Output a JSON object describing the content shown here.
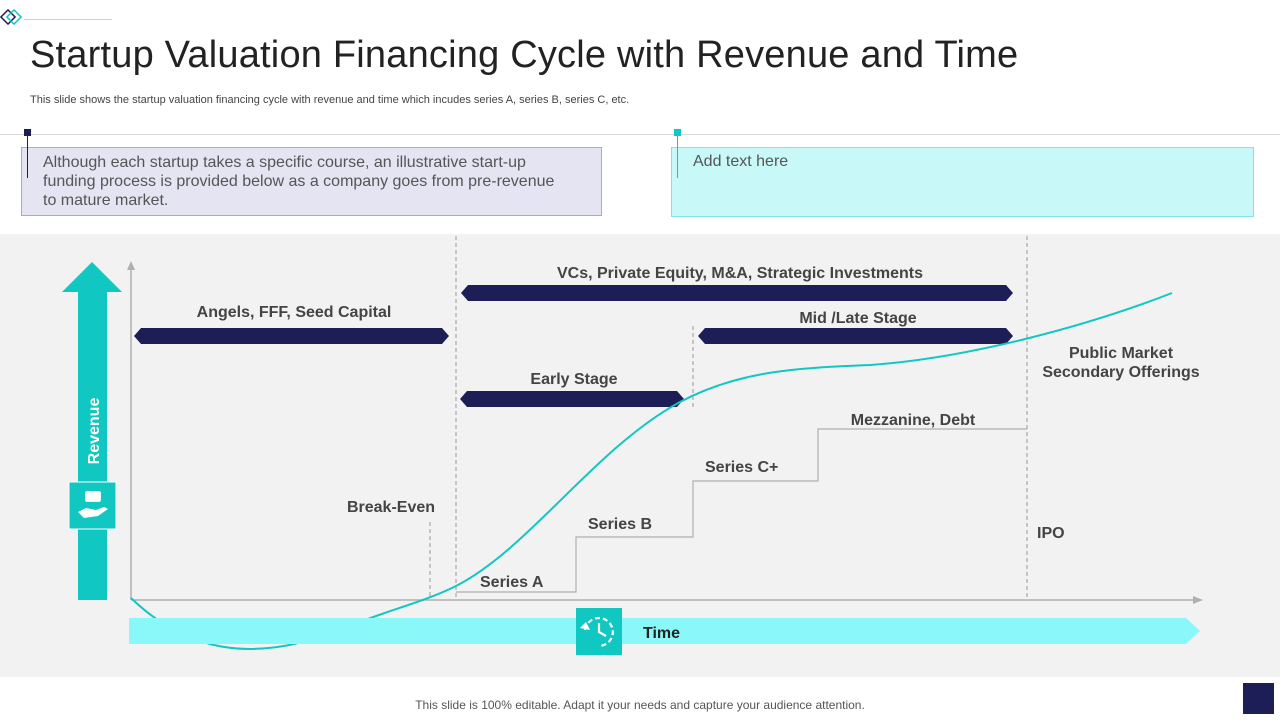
{
  "slide": {
    "title": "Startup Valuation Financing Cycle with Revenue and Time",
    "subtitle": "This slide shows the startup valuation financing cycle with revenue and time which incudes series A, series B, series C, etc.",
    "footer": "This slide is 100% editable. Adapt it your needs and capture your audience attention."
  },
  "boxes": {
    "left_text": "Although each startup takes a specific course, an illustrative start-up funding process is provided below as a company goes from pre-revenue to mature market.",
    "right_text": "Add text here"
  },
  "axes": {
    "y_label": "Revenue",
    "x_label": "Time"
  },
  "stage_labels": {
    "angels": "Angels, FFF, Seed Capital",
    "vcs": "VCs, Private Equity, M&A, Strategic Investments",
    "mid_late": "Mid /Late Stage",
    "early": "Early Stage",
    "public_1": "Public Market",
    "public_2": "Secondary Offerings"
  },
  "funding_steps": {
    "series_a": "Series A",
    "series_b": "Series B",
    "series_c": "Series C+",
    "mezzanine": "Mezzanine, Debt",
    "ipo": "IPO",
    "break_even": "Break-Even"
  },
  "colors": {
    "navy": "#1e1e57",
    "teal": "#10c7c1",
    "light_cyan": "#8af8f8",
    "panel": "#f2f2f2"
  },
  "icons": {
    "revenue": "hand-money-icon",
    "time": "clock-refresh-icon"
  }
}
